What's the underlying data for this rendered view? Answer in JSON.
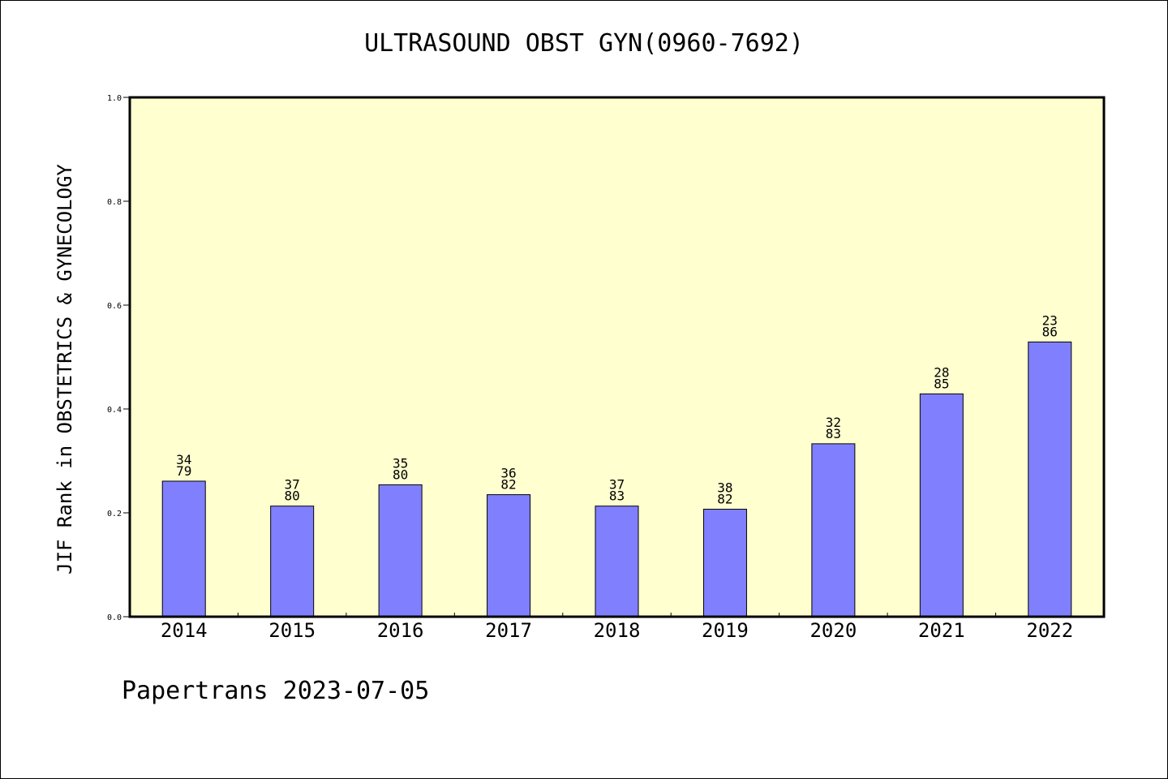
{
  "chart_data": {
    "type": "bar",
    "title": "ULTRASOUND OBST GYN(0960-7692)",
    "xlabel": "",
    "ylabel": "JIF Rank in OBSTETRICS & GYNECOLOGY",
    "ylim": [
      0,
      1.0
    ],
    "yticks": [
      "0.0",
      "0.2",
      "0.4",
      "0.6",
      "0.8",
      "1.0"
    ],
    "categories": [
      "2014",
      "2015",
      "2016",
      "2017",
      "2018",
      "2019",
      "2020",
      "2021",
      "2022"
    ],
    "values": [
      0.261,
      0.213,
      0.254,
      0.235,
      0.213,
      0.207,
      0.333,
      0.429,
      0.529
    ],
    "data_labels": [
      [
        "34",
        "79"
      ],
      [
        "37",
        "80"
      ],
      [
        "35",
        "80"
      ],
      [
        "36",
        "82"
      ],
      [
        "37",
        "83"
      ],
      [
        "38",
        "82"
      ],
      [
        "32",
        "83"
      ],
      [
        "28",
        "85"
      ],
      [
        "23",
        "86"
      ]
    ],
    "grid": false,
    "colors": {
      "plot_background": "#ffffd0",
      "bar_fill": "#8080ff",
      "bar_stroke": "#000000"
    }
  },
  "footer": "Papertrans 2023-07-05"
}
